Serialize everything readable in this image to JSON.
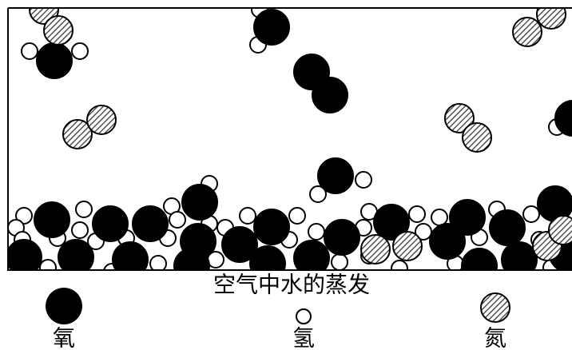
{
  "title": "空气中水的蒸发",
  "legend": [
    {
      "label": "氧"
    },
    {
      "label": "氢"
    },
    {
      "label": "氮"
    }
  ]
}
